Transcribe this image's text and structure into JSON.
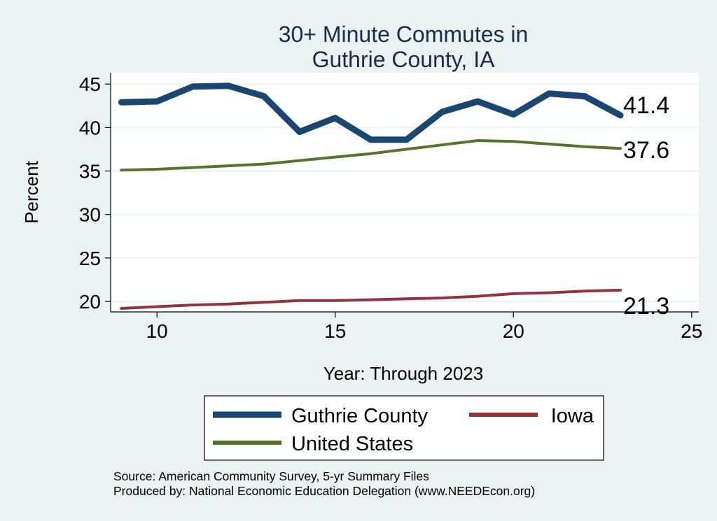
{
  "chart_data": {
    "type": "line",
    "title_lines": [
      "30+ Minute Commutes in",
      "Guthrie County, IA"
    ],
    "xlabel": "Year: Through 2023",
    "ylabel": "Percent",
    "xlim": [
      8.7,
      25.2
    ],
    "ylim": [
      18.8,
      46.3
    ],
    "xticks": [
      10,
      15,
      20,
      25
    ],
    "yticks": [
      20,
      25,
      30,
      35,
      40,
      45
    ],
    "grid": true,
    "x": [
      9,
      10,
      11,
      12,
      13,
      14,
      15,
      16,
      17,
      18,
      19,
      20,
      21,
      22,
      23
    ],
    "series": [
      {
        "name": "Guthrie County",
        "color": "#1a476f",
        "values": [
          42.9,
          43.0,
          44.7,
          44.8,
          43.6,
          39.5,
          41.1,
          38.6,
          38.6,
          41.8,
          43.0,
          41.5,
          43.9,
          43.6,
          41.4
        ],
        "end_label": "41.4"
      },
      {
        "name": "Iowa",
        "color": "#90353b",
        "values": [
          19.2,
          19.4,
          19.6,
          19.7,
          19.9,
          20.1,
          20.1,
          20.2,
          20.3,
          20.4,
          20.6,
          20.9,
          21.0,
          21.2,
          21.3
        ],
        "end_label": "21.3"
      },
      {
        "name": "United States",
        "color": "#55752f",
        "values": [
          35.1,
          35.2,
          35.4,
          35.6,
          35.8,
          36.2,
          36.6,
          37.0,
          37.5,
          38.0,
          38.5,
          38.4,
          38.1,
          37.8,
          37.6
        ],
        "end_label": "37.6"
      }
    ],
    "legend_position": "bottom",
    "notes": [
      "Source: American Community Survey, 5-yr Summary Files",
      "Produced by: National Economic Education Delegation (www.NEEDEcon.org)"
    ]
  }
}
